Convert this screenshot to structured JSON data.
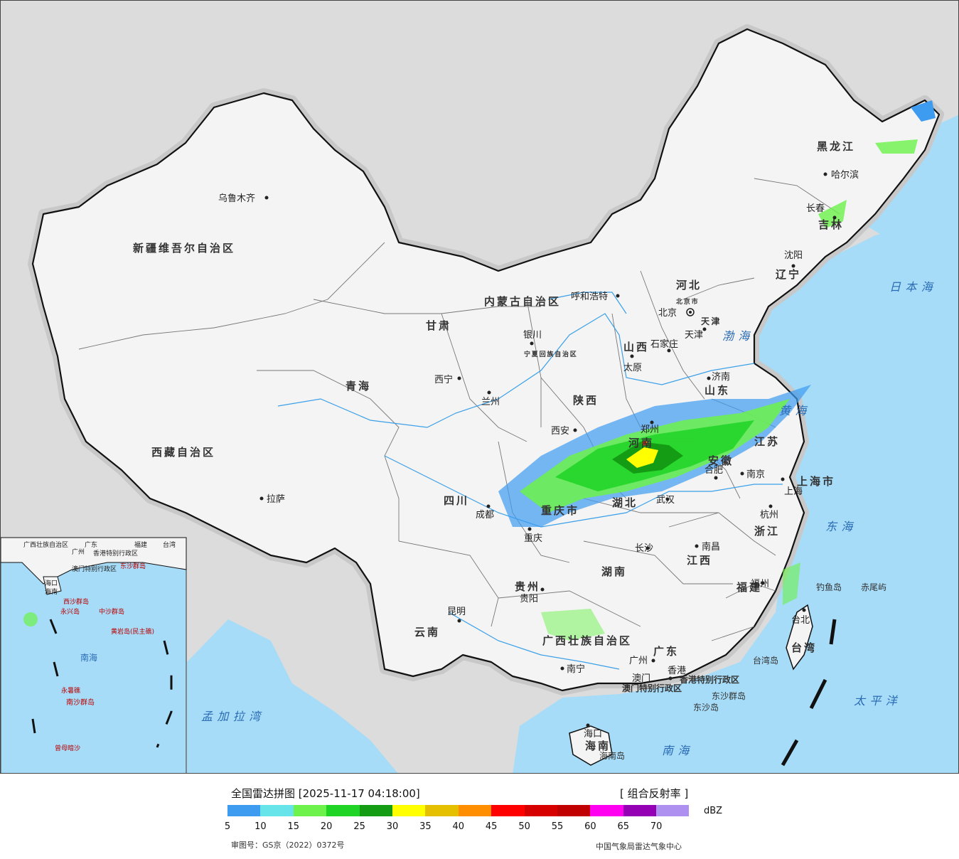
{
  "map": {
    "provinces": [
      "新疆维吾尔自治区",
      "西藏自治区",
      "青海",
      "甘肃",
      "内蒙古自治区",
      "黑龙江",
      "吉林",
      "辽宁",
      "河北",
      "山西",
      "陕西",
      "宁夏回族自治区",
      "河南",
      "山东",
      "江苏",
      "安徽",
      "湖北",
      "四川",
      "重庆市",
      "贵州",
      "云南",
      "湖南",
      "江西",
      "浙江",
      "福建",
      "广东",
      "广西壮族自治区",
      "海南",
      "台湾",
      "上海市",
      "天津",
      "北京市"
    ],
    "cities": [
      "乌鲁木齐",
      "拉萨",
      "西宁",
      "兰州",
      "银川",
      "呼和浩特",
      "哈尔滨",
      "长春",
      "沈阳",
      "北京",
      "天津",
      "石家庄",
      "太原",
      "济南",
      "郑州",
      "西安",
      "合肥",
      "南京",
      "上海",
      "杭州",
      "武汉",
      "成都",
      "重庆",
      "长沙",
      "南昌",
      "福州",
      "贵阳",
      "昆明",
      "南宁",
      "广州",
      "澳门",
      "香港",
      "海口",
      "台北"
    ],
    "seas": [
      "日本海",
      "渤海",
      "黄海",
      "东海",
      "太平洋",
      "南海",
      "孟加拉湾"
    ],
    "islands": [
      "钓鱼岛",
      "赤尾屿",
      "台湾岛",
      "东沙群岛",
      "东沙岛",
      "海南岛"
    ],
    "special_regions": [
      "香港特别行政区",
      "澳门特别行政区"
    ],
    "inset": {
      "labels": [
        "广西壮族自治区",
        "广东",
        "福建",
        "台湾",
        "广州",
        "香港特别行政区",
        "澳门特别行政区",
        "东沙群岛",
        "海口",
        "海南",
        "西沙群岛",
        "中沙群岛",
        "黄岩岛(民主礁)",
        "南海",
        "永暑礁",
        "南沙群岛",
        "曾母暗沙",
        "永兴岛"
      ]
    }
  },
  "legend": {
    "title": "全国雷达拼图 [2025-11-17 04:18:00]",
    "product": "[ 组合反射率 ]",
    "unit": "dBZ",
    "ticks": [
      "5",
      "10",
      "15",
      "20",
      "25",
      "30",
      "35",
      "40",
      "45",
      "50",
      "55",
      "60",
      "65",
      "70"
    ],
    "colors": [
      "#3d9bf0",
      "#66e4ea",
      "#6cf24b",
      "#1fd424",
      "#149d14",
      "#ffff00",
      "#e4c000",
      "#ff8f00",
      "#ff0000",
      "#d60000",
      "#c00000",
      "#ff00f0",
      "#9400b4",
      "#ad90f0"
    ],
    "approval": "审图号：GS京（2022）0372号",
    "source": "中国气象局雷达气象中心"
  }
}
